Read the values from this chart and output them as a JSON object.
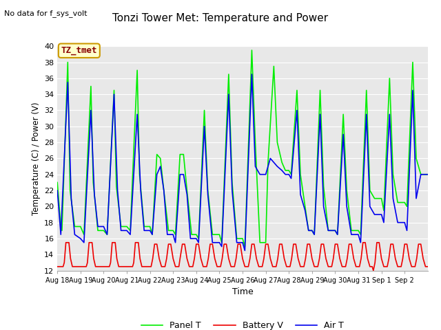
{
  "title": "Tonzi Tower Met: Temperature and Power",
  "no_data_text": "No data for f_sys_volt",
  "legend_box_text": "TZ_tmet",
  "ylabel": "Temperature (C) / Power (V)",
  "xlabel": "Time",
  "ylim": [
    12,
    40
  ],
  "yticks": [
    12,
    14,
    16,
    18,
    20,
    22,
    24,
    26,
    28,
    30,
    32,
    34,
    36,
    38,
    40
  ],
  "bg_color": "#e8e8e8",
  "fig_color": "#ffffff",
  "grid_color": "#ffffff",
  "panel_t_color": "#00ee00",
  "battery_v_color": "#ee0000",
  "air_t_color": "#0000ee",
  "legend_entries": [
    "Panel T",
    "Battery V",
    "Air T"
  ],
  "panel_t_data": [
    [
      0.0,
      23.0
    ],
    [
      0.15,
      17.5
    ],
    [
      0.2,
      17.0
    ],
    [
      0.45,
      38.0
    ],
    [
      0.55,
      22.0
    ],
    [
      0.75,
      17.5
    ],
    [
      1.0,
      17.5
    ],
    [
      1.15,
      16.5
    ],
    [
      1.45,
      35.0
    ],
    [
      1.55,
      23.0
    ],
    [
      1.75,
      17.0
    ],
    [
      2.0,
      17.0
    ],
    [
      2.15,
      16.5
    ],
    [
      2.45,
      34.5
    ],
    [
      2.55,
      22.5
    ],
    [
      2.75,
      17.5
    ],
    [
      3.0,
      17.5
    ],
    [
      3.15,
      17.0
    ],
    [
      3.45,
      37.0
    ],
    [
      3.55,
      24.0
    ],
    [
      3.75,
      17.5
    ],
    [
      4.0,
      17.5
    ],
    [
      4.1,
      16.5
    ],
    [
      4.3,
      26.5
    ],
    [
      4.45,
      26.0
    ],
    [
      4.6,
      22.0
    ],
    [
      4.8,
      17.0
    ],
    [
      5.0,
      17.0
    ],
    [
      5.1,
      16.5
    ],
    [
      5.3,
      26.5
    ],
    [
      5.45,
      26.5
    ],
    [
      5.6,
      22.0
    ],
    [
      5.8,
      16.5
    ],
    [
      6.0,
      16.5
    ],
    [
      6.1,
      16.0
    ],
    [
      6.35,
      32.0
    ],
    [
      6.5,
      22.0
    ],
    [
      6.7,
      16.5
    ],
    [
      7.0,
      16.5
    ],
    [
      7.1,
      15.5
    ],
    [
      7.4,
      36.5
    ],
    [
      7.55,
      23.0
    ],
    [
      7.75,
      16.0
    ],
    [
      8.0,
      16.0
    ],
    [
      8.1,
      15.0
    ],
    [
      8.4,
      39.5
    ],
    [
      8.55,
      28.0
    ],
    [
      8.75,
      15.5
    ],
    [
      9.0,
      15.5
    ],
    [
      9.1,
      25.5
    ],
    [
      9.35,
      37.5
    ],
    [
      9.5,
      28.0
    ],
    [
      9.7,
      25.5
    ],
    [
      9.85,
      24.5
    ],
    [
      10.0,
      24.5
    ],
    [
      10.1,
      24.0
    ],
    [
      10.35,
      34.5
    ],
    [
      10.5,
      24.0
    ],
    [
      10.7,
      20.0
    ],
    [
      10.85,
      17.0
    ],
    [
      11.0,
      17.0
    ],
    [
      11.1,
      16.5
    ],
    [
      11.35,
      34.5
    ],
    [
      11.5,
      22.5
    ],
    [
      11.7,
      17.0
    ],
    [
      12.0,
      17.0
    ],
    [
      12.1,
      16.5
    ],
    [
      12.35,
      31.5
    ],
    [
      12.5,
      22.0
    ],
    [
      12.7,
      17.0
    ],
    [
      13.0,
      17.0
    ],
    [
      13.1,
      16.5
    ],
    [
      13.35,
      34.5
    ],
    [
      13.5,
      22.0
    ],
    [
      13.7,
      21.0
    ],
    [
      14.0,
      21.0
    ],
    [
      14.1,
      19.5
    ],
    [
      14.35,
      36.0
    ],
    [
      14.5,
      24.0
    ],
    [
      14.7,
      20.5
    ],
    [
      15.0,
      20.5
    ],
    [
      15.1,
      20.0
    ],
    [
      15.35,
      38.0
    ],
    [
      15.5,
      26.0
    ],
    [
      15.7,
      24.0
    ],
    [
      16.0,
      24.0
    ]
  ],
  "battery_v_data": [
    [
      0.0,
      12.5
    ],
    [
      0.25,
      12.5
    ],
    [
      0.3,
      13.0
    ],
    [
      0.37,
      15.5
    ],
    [
      0.5,
      15.5
    ],
    [
      0.57,
      13.5
    ],
    [
      0.65,
      12.5
    ],
    [
      0.75,
      12.5
    ],
    [
      1.0,
      12.5
    ],
    [
      1.25,
      12.5
    ],
    [
      1.3,
      13.0
    ],
    [
      1.37,
      15.5
    ],
    [
      1.5,
      15.5
    ],
    [
      1.57,
      13.5
    ],
    [
      1.65,
      12.5
    ],
    [
      1.75,
      12.5
    ],
    [
      2.0,
      12.5
    ],
    [
      2.25,
      12.5
    ],
    [
      2.3,
      13.0
    ],
    [
      2.37,
      15.5
    ],
    [
      2.5,
      15.5
    ],
    [
      2.57,
      13.5
    ],
    [
      2.65,
      12.5
    ],
    [
      2.75,
      12.5
    ],
    [
      3.0,
      12.5
    ],
    [
      3.25,
      12.5
    ],
    [
      3.3,
      13.0
    ],
    [
      3.37,
      15.5
    ],
    [
      3.5,
      15.5
    ],
    [
      3.57,
      13.5
    ],
    [
      3.65,
      12.5
    ],
    [
      3.75,
      12.5
    ],
    [
      4.0,
      12.5
    ],
    [
      4.05,
      12.5
    ],
    [
      4.12,
      13.5
    ],
    [
      4.2,
      15.3
    ],
    [
      4.3,
      15.3
    ],
    [
      4.4,
      13.5
    ],
    [
      4.5,
      12.5
    ],
    [
      4.6,
      12.5
    ],
    [
      4.65,
      12.5
    ],
    [
      4.72,
      13.5
    ],
    [
      4.8,
      15.3
    ],
    [
      4.9,
      15.3
    ],
    [
      5.0,
      13.5
    ],
    [
      5.1,
      12.5
    ],
    [
      5.2,
      12.5
    ],
    [
      5.25,
      12.5
    ],
    [
      5.3,
      13.5
    ],
    [
      5.4,
      15.3
    ],
    [
      5.5,
      15.3
    ],
    [
      5.6,
      13.5
    ],
    [
      5.7,
      12.5
    ],
    [
      5.8,
      12.5
    ],
    [
      5.85,
      12.5
    ],
    [
      5.92,
      13.5
    ],
    [
      6.0,
      15.3
    ],
    [
      6.1,
      15.3
    ],
    [
      6.2,
      13.5
    ],
    [
      6.3,
      12.5
    ],
    [
      6.4,
      12.5
    ],
    [
      6.45,
      12.5
    ],
    [
      6.52,
      13.5
    ],
    [
      6.6,
      15.3
    ],
    [
      6.7,
      15.3
    ],
    [
      6.8,
      13.5
    ],
    [
      6.9,
      12.5
    ],
    [
      7.0,
      12.5
    ],
    [
      7.05,
      12.5
    ],
    [
      7.12,
      13.5
    ],
    [
      7.2,
      15.3
    ],
    [
      7.3,
      15.3
    ],
    [
      7.4,
      13.5
    ],
    [
      7.5,
      12.5
    ],
    [
      7.6,
      12.5
    ],
    [
      7.65,
      12.5
    ],
    [
      7.72,
      13.5
    ],
    [
      7.8,
      15.3
    ],
    [
      7.9,
      15.3
    ],
    [
      8.0,
      13.5
    ],
    [
      8.1,
      12.5
    ],
    [
      8.2,
      12.5
    ],
    [
      8.25,
      12.5
    ],
    [
      8.32,
      13.5
    ],
    [
      8.4,
      15.3
    ],
    [
      8.5,
      15.3
    ],
    [
      8.6,
      13.5
    ],
    [
      8.7,
      12.5
    ],
    [
      8.8,
      12.5
    ],
    [
      8.85,
      12.5
    ],
    [
      8.92,
      13.5
    ],
    [
      9.0,
      15.3
    ],
    [
      9.1,
      15.3
    ],
    [
      9.2,
      13.5
    ],
    [
      9.3,
      12.5
    ],
    [
      9.4,
      12.5
    ],
    [
      9.45,
      12.5
    ],
    [
      9.52,
      13.5
    ],
    [
      9.6,
      15.3
    ],
    [
      9.7,
      15.3
    ],
    [
      9.8,
      13.5
    ],
    [
      9.9,
      12.5
    ],
    [
      10.0,
      12.5
    ],
    [
      10.05,
      12.5
    ],
    [
      10.12,
      13.5
    ],
    [
      10.2,
      15.3
    ],
    [
      10.3,
      15.3
    ],
    [
      10.4,
      13.5
    ],
    [
      10.5,
      12.5
    ],
    [
      10.6,
      12.5
    ],
    [
      10.65,
      12.5
    ],
    [
      10.72,
      13.5
    ],
    [
      10.8,
      15.3
    ],
    [
      10.9,
      15.3
    ],
    [
      11.0,
      13.5
    ],
    [
      11.1,
      12.5
    ],
    [
      11.2,
      12.5
    ],
    [
      11.25,
      12.5
    ],
    [
      11.32,
      13.5
    ],
    [
      11.4,
      15.3
    ],
    [
      11.5,
      15.3
    ],
    [
      11.6,
      13.5
    ],
    [
      11.7,
      12.5
    ],
    [
      11.8,
      12.5
    ],
    [
      11.85,
      12.5
    ],
    [
      11.92,
      13.5
    ],
    [
      12.0,
      15.3
    ],
    [
      12.1,
      15.3
    ],
    [
      12.2,
      13.5
    ],
    [
      12.3,
      12.5
    ],
    [
      12.4,
      12.5
    ],
    [
      12.45,
      12.5
    ],
    [
      12.52,
      13.5
    ],
    [
      12.6,
      15.3
    ],
    [
      12.7,
      15.3
    ],
    [
      12.8,
      13.5
    ],
    [
      12.9,
      12.5
    ],
    [
      13.0,
      12.5
    ],
    [
      13.05,
      12.5
    ],
    [
      13.12,
      13.5
    ],
    [
      13.2,
      15.5
    ],
    [
      13.3,
      15.5
    ],
    [
      13.4,
      13.5
    ],
    [
      13.5,
      12.5
    ],
    [
      13.6,
      12.5
    ],
    [
      13.65,
      12.0
    ],
    [
      13.72,
      13.0
    ],
    [
      13.8,
      15.5
    ],
    [
      13.9,
      15.5
    ],
    [
      14.0,
      13.5
    ],
    [
      14.1,
      12.5
    ],
    [
      14.2,
      12.5
    ],
    [
      14.25,
      12.5
    ],
    [
      14.32,
      13.5
    ],
    [
      14.4,
      15.3
    ],
    [
      14.5,
      15.3
    ],
    [
      14.6,
      13.5
    ],
    [
      14.7,
      12.5
    ],
    [
      14.8,
      12.5
    ],
    [
      14.85,
      12.5
    ],
    [
      14.92,
      13.5
    ],
    [
      15.0,
      15.3
    ],
    [
      15.1,
      15.3
    ],
    [
      15.2,
      13.5
    ],
    [
      15.3,
      12.5
    ],
    [
      15.4,
      12.5
    ],
    [
      15.45,
      12.5
    ],
    [
      15.52,
      13.5
    ],
    [
      15.6,
      15.3
    ],
    [
      15.7,
      15.3
    ],
    [
      15.8,
      13.5
    ],
    [
      15.9,
      12.5
    ],
    [
      16.0,
      12.5
    ]
  ],
  "air_t_data": [
    [
      0.0,
      22.0
    ],
    [
      0.15,
      16.5
    ],
    [
      0.45,
      35.5
    ],
    [
      0.6,
      21.0
    ],
    [
      0.75,
      16.5
    ],
    [
      1.0,
      16.0
    ],
    [
      1.15,
      15.5
    ],
    [
      1.45,
      32.0
    ],
    [
      1.6,
      21.5
    ],
    [
      1.75,
      17.5
    ],
    [
      2.0,
      17.5
    ],
    [
      2.15,
      16.5
    ],
    [
      2.45,
      34.0
    ],
    [
      2.6,
      22.0
    ],
    [
      2.75,
      17.0
    ],
    [
      3.0,
      17.0
    ],
    [
      3.15,
      16.5
    ],
    [
      3.45,
      31.5
    ],
    [
      3.6,
      22.0
    ],
    [
      3.75,
      17.0
    ],
    [
      4.0,
      17.0
    ],
    [
      4.1,
      16.5
    ],
    [
      4.3,
      24.0
    ],
    [
      4.45,
      25.0
    ],
    [
      4.6,
      22.0
    ],
    [
      4.75,
      16.5
    ],
    [
      5.0,
      16.5
    ],
    [
      5.1,
      15.5
    ],
    [
      5.3,
      24.0
    ],
    [
      5.45,
      24.0
    ],
    [
      5.6,
      21.5
    ],
    [
      5.75,
      16.0
    ],
    [
      6.0,
      16.0
    ],
    [
      6.1,
      15.5
    ],
    [
      6.35,
      30.0
    ],
    [
      6.5,
      21.5
    ],
    [
      6.7,
      15.5
    ],
    [
      7.0,
      15.5
    ],
    [
      7.1,
      15.0
    ],
    [
      7.4,
      34.0
    ],
    [
      7.55,
      22.0
    ],
    [
      7.75,
      15.5
    ],
    [
      8.0,
      15.5
    ],
    [
      8.1,
      14.5
    ],
    [
      8.4,
      36.5
    ],
    [
      8.55,
      25.0
    ],
    [
      8.75,
      24.0
    ],
    [
      9.0,
      24.0
    ],
    [
      9.05,
      24.5
    ],
    [
      9.2,
      26.0
    ],
    [
      9.35,
      25.5
    ],
    [
      9.5,
      25.0
    ],
    [
      9.7,
      24.5
    ],
    [
      9.85,
      24.0
    ],
    [
      10.0,
      24.0
    ],
    [
      10.1,
      23.5
    ],
    [
      10.35,
      32.0
    ],
    [
      10.5,
      21.5
    ],
    [
      10.7,
      19.5
    ],
    [
      10.85,
      17.0
    ],
    [
      11.0,
      17.0
    ],
    [
      11.1,
      16.5
    ],
    [
      11.35,
      31.5
    ],
    [
      11.5,
      20.0
    ],
    [
      11.7,
      17.0
    ],
    [
      12.0,
      17.0
    ],
    [
      12.1,
      16.5
    ],
    [
      12.35,
      29.0
    ],
    [
      12.5,
      20.0
    ],
    [
      12.7,
      16.5
    ],
    [
      13.0,
      16.5
    ],
    [
      13.1,
      15.5
    ],
    [
      13.35,
      31.5
    ],
    [
      13.5,
      20.0
    ],
    [
      13.7,
      19.0
    ],
    [
      14.0,
      19.0
    ],
    [
      14.1,
      18.0
    ],
    [
      14.35,
      31.5
    ],
    [
      14.5,
      21.0
    ],
    [
      14.7,
      18.0
    ],
    [
      15.0,
      18.0
    ],
    [
      15.1,
      17.0
    ],
    [
      15.35,
      34.5
    ],
    [
      15.5,
      21.0
    ],
    [
      15.7,
      24.0
    ],
    [
      16.0,
      24.0
    ]
  ],
  "xtick_positions": [
    0,
    1,
    2,
    3,
    4,
    5,
    6,
    7,
    8,
    9,
    10,
    11,
    12,
    13,
    14,
    15
  ],
  "xtick_labels": [
    "Aug 18",
    "Aug 19",
    "Aug 20",
    "Aug 21",
    "Aug 22",
    "Aug 23",
    "Aug 24",
    "Aug 25",
    "Aug 26",
    "Aug 27",
    "Aug 28",
    "Aug 29",
    "Aug 30",
    "Aug 31",
    "Sep 1",
    "Sep 2"
  ]
}
